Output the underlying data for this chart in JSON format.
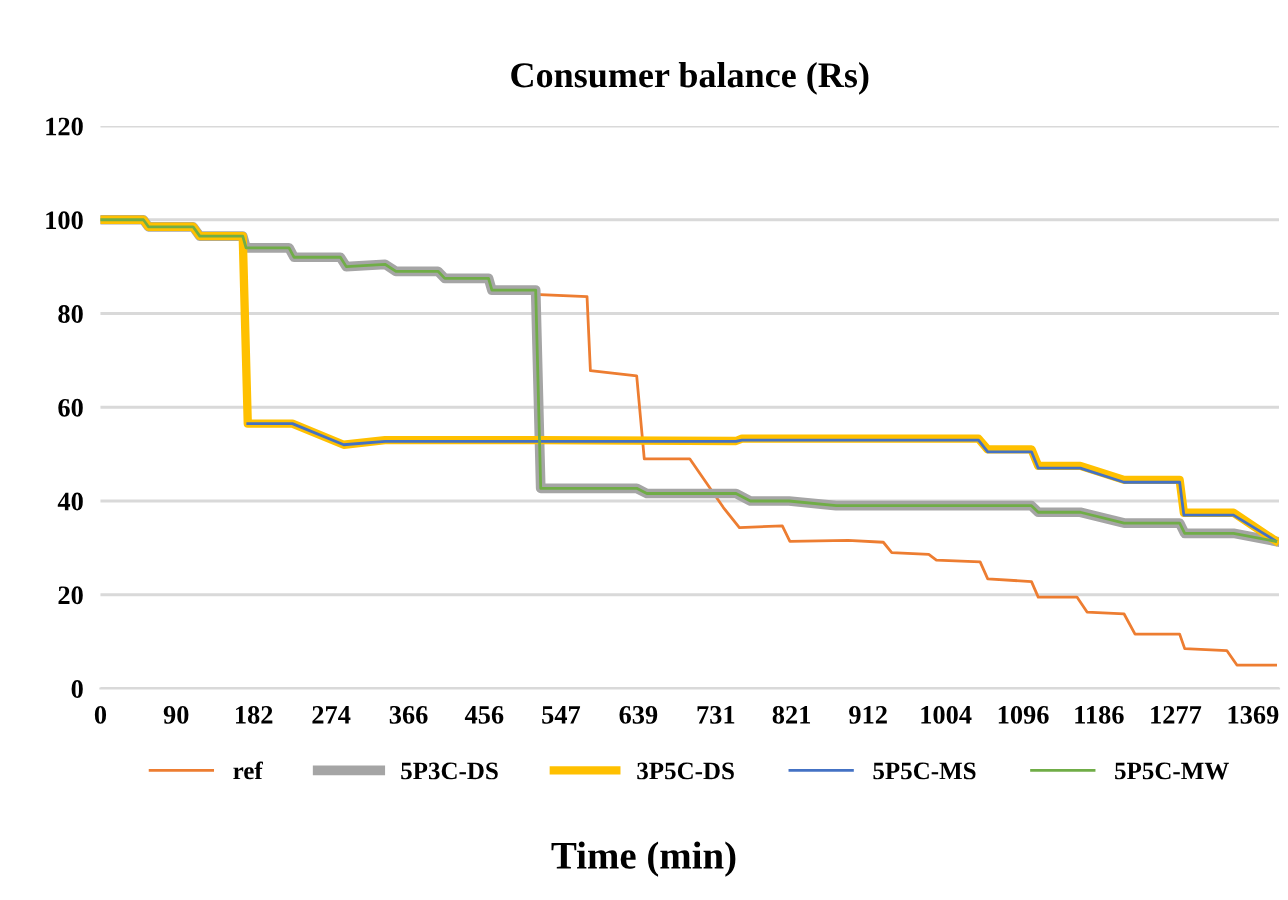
{
  "chart_data": {
    "type": "line",
    "title": "Consumer balance (Rs)",
    "xlabel": "Time (min)",
    "xlim": [
      0,
      1400
    ],
    "xticks": [
      0,
      90,
      182,
      274,
      366,
      456,
      547,
      639,
      731,
      821,
      912,
      1004,
      1096,
      1186,
      1277,
      1369
    ],
    "ylim": [
      0,
      120
    ],
    "yticks": [
      0,
      20,
      40,
      60,
      80,
      100,
      120
    ],
    "grid": "y",
    "legend": "bottom",
    "marker": "none",
    "line_style": "solid",
    "series": [
      {
        "name": "ref",
        "color": "#ed7d31",
        "x": [
          523,
          578,
          582,
          637,
          646,
          700,
          740,
          759,
          810,
          819,
          888,
          930,
          940,
          984,
          993,
          1045,
          1054,
          1106,
          1114,
          1160,
          1172,
          1216,
          1229,
          1282,
          1288,
          1338,
          1350,
          1396
        ],
        "values": [
          84,
          83.6,
          67.8,
          66.7,
          49,
          49,
          38.6,
          34.3,
          34.7,
          31.4,
          31.6,
          31.2,
          29,
          28.6,
          27.4,
          27,
          23.4,
          22.8,
          19.5,
          19.5,
          16.3,
          15.9,
          11.6,
          11.6,
          8.5,
          8.1,
          5,
          5
        ]
      },
      {
        "name": "5P3C-DS",
        "color": "#a5a5a5",
        "x": [
          0,
          51,
          57,
          110,
          118,
          169,
          173,
          224,
          230,
          285,
          292,
          338,
          351,
          401,
          409,
          461,
          465,
          517,
          523,
          637,
          649,
          755,
          772,
          818,
          874,
          1106,
          1114,
          1164,
          1216,
          1282,
          1288,
          1346,
          1396
        ],
        "values": [
          100,
          100,
          98.5,
          98.5,
          96.5,
          96.5,
          94,
          94,
          92,
          92,
          90,
          90.5,
          89,
          89,
          87.5,
          87.5,
          85,
          85,
          42.7,
          42.7,
          41.6,
          41.6,
          40,
          40,
          39,
          39,
          37.6,
          37.6,
          35.3,
          35.3,
          33.1,
          33.1,
          31.4
        ]
      },
      {
        "name": "3P5C-DS",
        "color": "#ffc000",
        "x": [
          0,
          51,
          57,
          110,
          118,
          169,
          175,
          228,
          289,
          338,
          519,
          755,
          762,
          1043,
          1054,
          1106,
          1114,
          1164,
          1216,
          1282,
          1287,
          1346,
          1396
        ],
        "values": [
          100,
          100,
          98.5,
          98.5,
          96.5,
          96.5,
          56.5,
          56.5,
          52,
          53,
          53,
          52.8,
          53.3,
          53.3,
          51,
          51,
          47.5,
          47.5,
          44.5,
          44.5,
          37.5,
          37.5,
          31.5
        ]
      },
      {
        "name": "5P5C-MS",
        "color": "#4472c4",
        "x": [
          175,
          228,
          289,
          338,
          519,
          755,
          762,
          1043,
          1054,
          1106,
          1114,
          1164,
          1216,
          1282,
          1287,
          1346,
          1396
        ],
        "values": [
          56.5,
          56.5,
          52,
          52.7,
          52.7,
          52.7,
          53,
          53,
          50.5,
          50.5,
          47,
          47,
          44,
          44,
          37,
          37,
          31.5
        ]
      },
      {
        "name": "5P5C-MW",
        "color": "#70ad47",
        "x": [
          0,
          51,
          57,
          110,
          118,
          169,
          173,
          224,
          230,
          285,
          292,
          338,
          351,
          401,
          409,
          461,
          465,
          517,
          523,
          637,
          649,
          755,
          772,
          818,
          874,
          1106,
          1114,
          1164,
          1216,
          1282,
          1288,
          1346,
          1396
        ],
        "values": [
          100,
          100,
          98.5,
          98.5,
          96.5,
          96.5,
          94,
          94,
          92,
          92,
          90,
          90.5,
          89,
          89,
          87.5,
          87.5,
          85,
          85,
          42.7,
          42.7,
          41.6,
          41.6,
          40,
          40,
          39,
          39,
          37.6,
          37.6,
          35.3,
          35.3,
          33.1,
          33.1,
          31.4
        ]
      }
    ]
  }
}
